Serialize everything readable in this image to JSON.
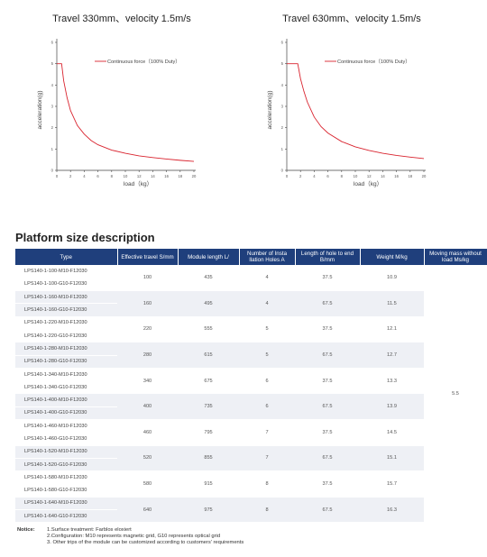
{
  "chart_data": [
    {
      "type": "line",
      "title": "Travel 330mm、velocity 1.5m/s",
      "xlabel": "load（kg）",
      "ylabel": "acceleration(g)",
      "xticks": [
        "0",
        "2",
        "4",
        "6",
        "8",
        "10",
        "12",
        "14",
        "16",
        "18",
        "20"
      ],
      "yticks": [
        "0",
        "1",
        "2",
        "3",
        "4",
        "5",
        "6"
      ],
      "xlim": [
        0,
        20
      ],
      "ylim": [
        0,
        6
      ],
      "series": [
        {
          "name": "Continuous force（100% Duty）",
          "color": "#d9232e",
          "x": [
            0,
            0.7,
            1,
            1.5,
            2,
            3,
            4,
            5,
            6,
            8,
            10,
            12,
            14,
            16,
            18,
            20
          ],
          "y": [
            5,
            5,
            4.2,
            3.4,
            2.8,
            2.1,
            1.7,
            1.4,
            1.2,
            0.95,
            0.8,
            0.68,
            0.6,
            0.53,
            0.47,
            0.42
          ]
        }
      ]
    },
    {
      "type": "line",
      "title": "Travel 630mm、velocity 1.5m/s",
      "xlabel": "load（kg）",
      "ylabel": "acceleration(g)",
      "xticks": [
        "0",
        "2",
        "4",
        "6",
        "8",
        "10",
        "12",
        "14",
        "16",
        "18",
        "20"
      ],
      "yticks": [
        "0",
        "1",
        "2",
        "3",
        "4",
        "5",
        "6"
      ],
      "xlim": [
        0,
        20
      ],
      "ylim": [
        0,
        6
      ],
      "series": [
        {
          "name": "Continuous force（100% Duty）",
          "color": "#d9232e",
          "x": [
            0,
            1.6,
            2,
            2.5,
            3,
            4,
            5,
            6,
            8,
            10,
            12,
            14,
            16,
            18,
            20
          ],
          "y": [
            5,
            5,
            4.3,
            3.7,
            3.2,
            2.5,
            2.05,
            1.75,
            1.35,
            1.1,
            0.93,
            0.8,
            0.7,
            0.62,
            0.55
          ]
        }
      ]
    }
  ],
  "section_title": "Platform size description",
  "table": {
    "headers": [
      "Type",
      "Effective travel S/mm",
      "Module length L/",
      "Number of Insta llation Holes A",
      "Length of hole to end B/mm",
      "Weight M/kg",
      "Moving mass without load Ms/kg"
    ],
    "groups": [
      {
        "types": [
          "LPS140-1-100-M10-F12030",
          "LPS140-1-100-G10-F12030"
        ],
        "travel": "100",
        "length": "435",
        "holes": "4",
        "hole_end": "37.5",
        "weight": "10.9"
      },
      {
        "types": [
          "LPS140-1-160-M10-F12030",
          "LPS140-1-160-G10-F12030"
        ],
        "travel": "160",
        "length": "495",
        "holes": "4",
        "hole_end": "67.5",
        "weight": "11.5"
      },
      {
        "types": [
          "LPS140-1-220-M10-F12030",
          "LPS140-1-220-G10-F12030"
        ],
        "travel": "220",
        "length": "555",
        "holes": "5",
        "hole_end": "37.5",
        "weight": "12.1"
      },
      {
        "types": [
          "LPS140-1-280-M10-F12030",
          "LPS140-1-280-G10-F12030"
        ],
        "travel": "280",
        "length": "615",
        "holes": "5",
        "hole_end": "67.5",
        "weight": "12.7"
      },
      {
        "types": [
          "LPS140-1-340-M10-F12030",
          "LPS140-1-340-G10-F12030"
        ],
        "travel": "340",
        "length": "675",
        "holes": "6",
        "hole_end": "37.5",
        "weight": "13.3"
      },
      {
        "types": [
          "LPS140-1-400-M10-F12030",
          "LPS140-1-400-G10-F12030"
        ],
        "travel": "400",
        "length": "735",
        "holes": "6",
        "hole_end": "67.5",
        "weight": "13.9"
      },
      {
        "types": [
          "LPS140-1-460-M10-F12030",
          "LPS140-1-460-G10-F12030"
        ],
        "travel": "460",
        "length": "795",
        "holes": "7",
        "hole_end": "37.5",
        "weight": "14.5"
      },
      {
        "types": [
          "LPS140-1-520-M10-F12030",
          "LPS140-1-520-G10-F12030"
        ],
        "travel": "520",
        "length": "855",
        "holes": "7",
        "hole_end": "67.5",
        "weight": "15.1"
      },
      {
        "types": [
          "LPS140-1-580-M10-F12030",
          "LPS140-1-580-G10-F12030"
        ],
        "travel": "580",
        "length": "915",
        "holes": "8",
        "hole_end": "37.5",
        "weight": "15.7"
      },
      {
        "types": [
          "LPS140-1-640-M10-F12030",
          "LPS140-1-640-G10-F12030"
        ],
        "travel": "640",
        "length": "975",
        "holes": "8",
        "hole_end": "67.5",
        "weight": "16.3"
      }
    ],
    "moving_mass": "5.5"
  },
  "notice": {
    "label": "Notice:",
    "items": [
      "1.Surface treatment: Farblos eloxiert",
      "2.Configuration: M10 represents magnetic grid, G10 represents optical grid",
      "3. Other trips of the module can be customized according to customers' requirements"
    ]
  }
}
